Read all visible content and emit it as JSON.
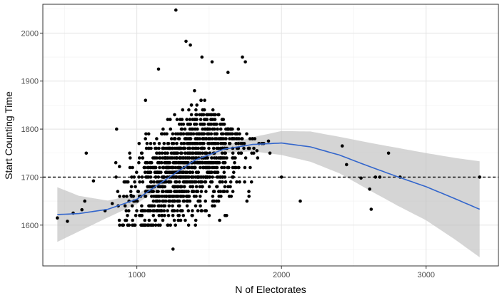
{
  "chart_data": {
    "type": "scatter",
    "xlabel": "N of Electorates",
    "ylabel": "Start Counting Time",
    "xlim": [
      350,
      3500
    ],
    "ylim": [
      1515,
      2060
    ],
    "x_ticks": [
      1000,
      2000,
      3000
    ],
    "x_tick_labels": [
      "1000",
      "2000",
      "3000"
    ],
    "y_ticks": [
      1600,
      1700,
      1800,
      1900,
      2000
    ],
    "y_tick_labels": [
      "1600",
      "1700",
      "1800",
      "1900",
      "2000"
    ],
    "grid": true,
    "legend": "none",
    "reference_line": {
      "y": 1700,
      "style": "dashed"
    },
    "colors": {
      "points": "#000000",
      "smooth": "#3366cc",
      "band": "#bebebe",
      "reference": "#000000"
    },
    "outliers": [
      {
        "x": 450,
        "y": 1615
      },
      {
        "x": 520,
        "y": 1608
      },
      {
        "x": 560,
        "y": 1625
      },
      {
        "x": 620,
        "y": 1632
      },
      {
        "x": 640,
        "y": 1650
      },
      {
        "x": 650,
        "y": 1750
      },
      {
        "x": 700,
        "y": 1692
      },
      {
        "x": 780,
        "y": 1630
      },
      {
        "x": 830,
        "y": 1645
      },
      {
        "x": 860,
        "y": 1800
      },
      {
        "x": 880,
        "y": 1722
      },
      {
        "x": 920,
        "y": 1690
      },
      {
        "x": 960,
        "y": 1662
      },
      {
        "x": 1060,
        "y": 1860
      },
      {
        "x": 1150,
        "y": 1925
      },
      {
        "x": 1250,
        "y": 1550
      },
      {
        "x": 1270,
        "y": 2048
      },
      {
        "x": 1340,
        "y": 1983
      },
      {
        "x": 1370,
        "y": 1975
      },
      {
        "x": 1450,
        "y": 1950
      },
      {
        "x": 1520,
        "y": 1940
      },
      {
        "x": 1630,
        "y": 1918
      },
      {
        "x": 1730,
        "y": 1950
      },
      {
        "x": 1750,
        "y": 1940
      },
      {
        "x": 1800,
        "y": 1780
      },
      {
        "x": 1830,
        "y": 1755
      },
      {
        "x": 1910,
        "y": 1775
      },
      {
        "x": 1920,
        "y": 1750
      },
      {
        "x": 2000,
        "y": 1700
      },
      {
        "x": 2130,
        "y": 1650
      },
      {
        "x": 2420,
        "y": 1765
      },
      {
        "x": 2450,
        "y": 1726
      },
      {
        "x": 2550,
        "y": 1698
      },
      {
        "x": 2610,
        "y": 1675
      },
      {
        "x": 2620,
        "y": 1633
      },
      {
        "x": 2650,
        "y": 1700
      },
      {
        "x": 2680,
        "y": 1700
      },
      {
        "x": 2740,
        "y": 1750
      },
      {
        "x": 2820,
        "y": 1700
      },
      {
        "x": 3370,
        "y": 1700
      }
    ],
    "cluster": {
      "x_range": [
        850,
        1880
      ],
      "center_x": 1350,
      "y_min": 1600,
      "count": 1200,
      "note_points": "dense cloud of observations between about 1600 and 1900"
    },
    "smooth": [
      {
        "x": 450,
        "y": 1622,
        "lo": 1565,
        "hi": 1679
      },
      {
        "x": 600,
        "y": 1624,
        "lo": 1587,
        "hi": 1661
      },
      {
        "x": 800,
        "y": 1633,
        "lo": 1616,
        "hi": 1651
      },
      {
        "x": 1000,
        "y": 1654,
        "lo": 1644,
        "hi": 1664
      },
      {
        "x": 1200,
        "y": 1695,
        "lo": 1688,
        "hi": 1702
      },
      {
        "x": 1400,
        "y": 1735,
        "lo": 1728,
        "hi": 1742
      },
      {
        "x": 1600,
        "y": 1758,
        "lo": 1750,
        "hi": 1766
      },
      {
        "x": 1800,
        "y": 1768,
        "lo": 1754,
        "hi": 1783
      },
      {
        "x": 2000,
        "y": 1771,
        "lo": 1746,
        "hi": 1796
      },
      {
        "x": 2200,
        "y": 1763,
        "lo": 1732,
        "hi": 1795
      },
      {
        "x": 2400,
        "y": 1746,
        "lo": 1708,
        "hi": 1784
      },
      {
        "x": 2600,
        "y": 1723,
        "lo": 1674,
        "hi": 1772
      },
      {
        "x": 2800,
        "y": 1701,
        "lo": 1641,
        "hi": 1761
      },
      {
        "x": 3000,
        "y": 1680,
        "lo": 1610,
        "hi": 1750
      },
      {
        "x": 3200,
        "y": 1655,
        "lo": 1570,
        "hi": 1740
      },
      {
        "x": 3370,
        "y": 1633,
        "lo": 1533,
        "hi": 1733
      }
    ]
  }
}
